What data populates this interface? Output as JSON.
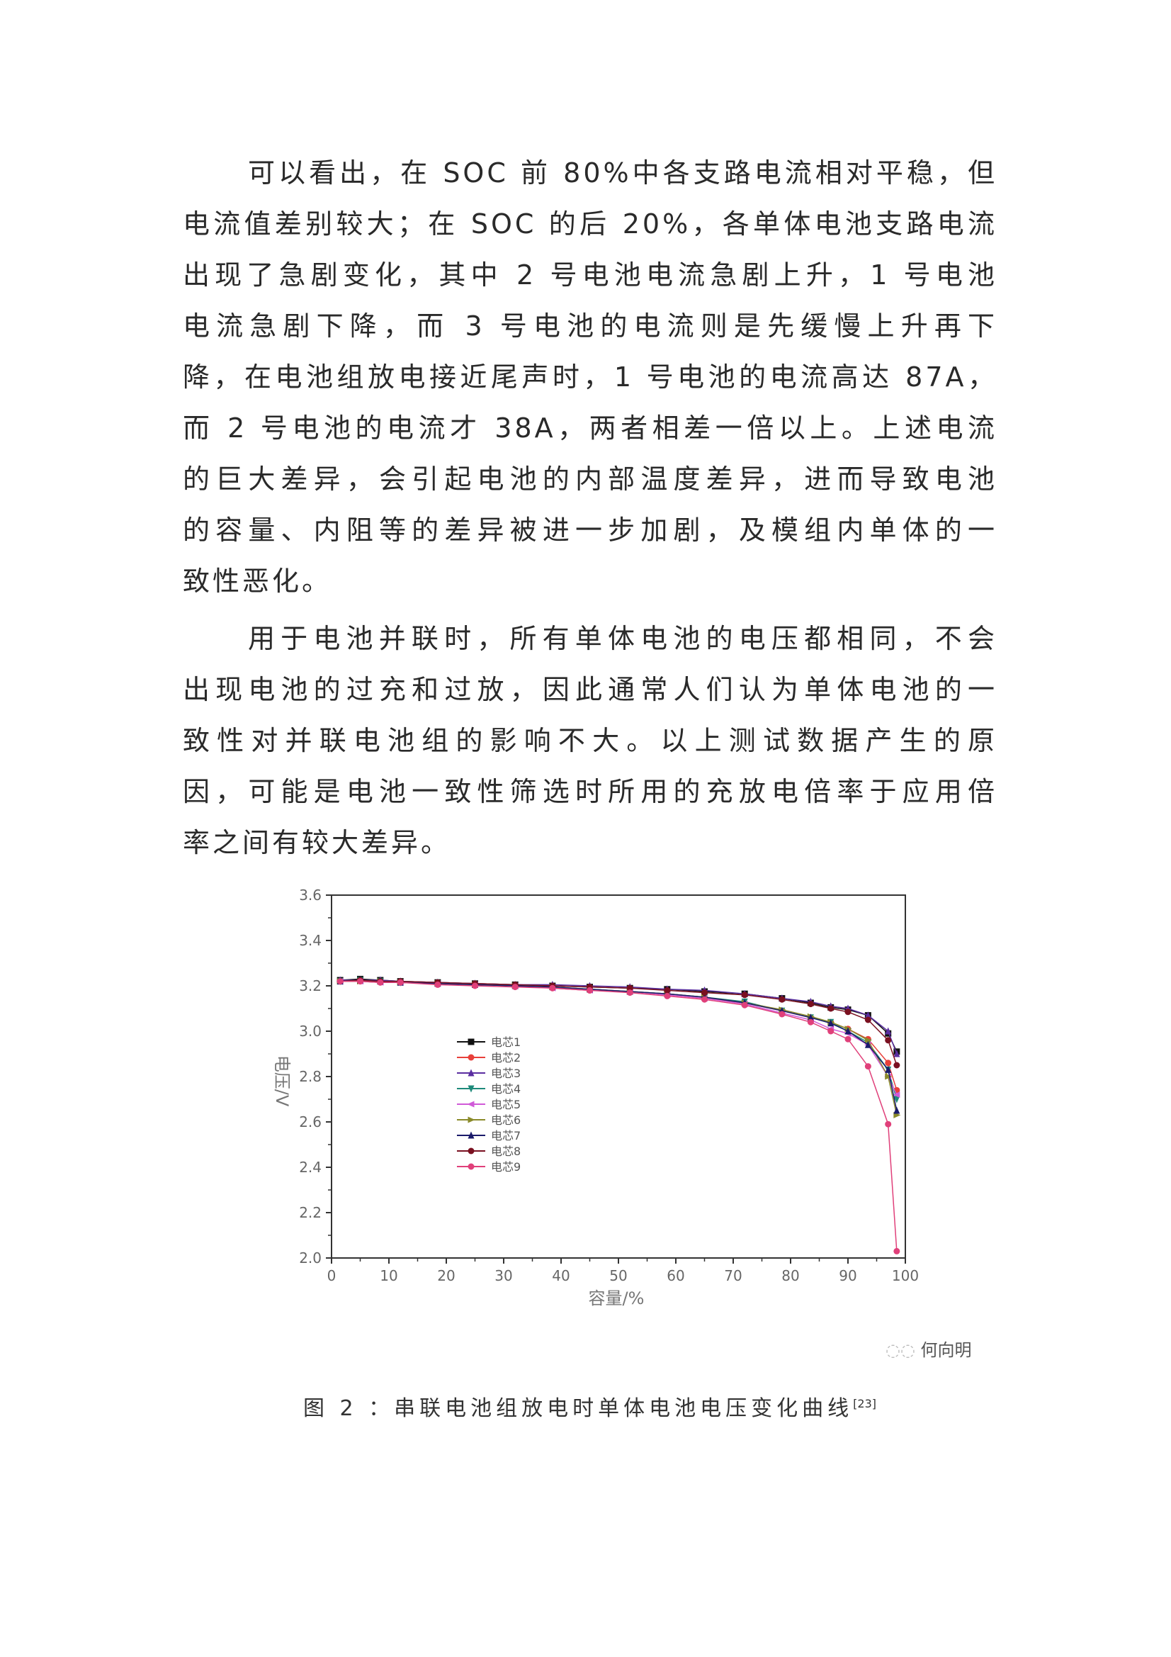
{
  "paragraphs": [
    {
      "lines": [
        "可以看出，在 SOC 前 80%中各支路电流相对平稳，但",
        "电流值差别较大；在 SOC 的后 20%，各单体电池支路电流",
        "出现了急剧变化，其中 2 号电池电流急剧上升，1 号电池",
        "电流急剧下降，而 3 号电池的电流则是先缓慢上升再下",
        "降，在电池组放电接近尾声时，1 号电池的电流高达 87A，",
        "而 2 号电池的电流才 38A，两者相差一倍以上。上述电流",
        "的巨大差异，会引起电池的内部温度差异，进而导致电池",
        "的容量、内阻等的差异被进一步加剧，及模组内单体的一",
        "致性恶化。"
      ]
    },
    {
      "lines": [
        "用于电池并联时，所有单体电池的电压都相同，不会",
        "出现电池的过充和过放，因此通常人们认为单体电池的一",
        "致性对并联电池组的影响不大。以上测试数据产生的原",
        "因，可能是电池一致性筛选时所用的充放电倍率于应用倍",
        "率之间有较大差异。"
      ]
    }
  ],
  "figure": {
    "caption": "图 2 ：串联电池组放电时单体电池电压变化曲线",
    "citation": "[23]",
    "watermark": "何向明"
  },
  "chart_data": {
    "type": "line",
    "xlabel": "容量/%",
    "ylabel": "电压/V",
    "xlim": [
      0,
      100
    ],
    "ylim": [
      2.0,
      3.6
    ],
    "xticks": [
      "0",
      "10",
      "20",
      "30",
      "40",
      "50",
      "60",
      "70",
      "80",
      "90",
      "100"
    ],
    "yticks": [
      "2.0",
      "2.2",
      "2.4",
      "2.6",
      "2.8",
      "3.0",
      "3.2",
      "3.4",
      "3.6"
    ],
    "grid": false,
    "legend_position": "center-left",
    "x": [
      1.5,
      5,
      8.5,
      12,
      18.5,
      25,
      32,
      38.5,
      45,
      52,
      58.5,
      65,
      72,
      78.5,
      83.5,
      87,
      90,
      93.5,
      97,
      98.5
    ],
    "series": [
      {
        "name": "电芯1",
        "color": "#111111",
        "marker": "square",
        "values": [
          3.225,
          3.23,
          3.225,
          3.22,
          3.215,
          3.21,
          3.205,
          3.2,
          3.195,
          3.19,
          3.185,
          3.175,
          3.165,
          3.145,
          3.125,
          3.105,
          3.095,
          3.07,
          2.99,
          2.91
        ]
      },
      {
        "name": "电芯2",
        "color": "#e8403a",
        "marker": "circle",
        "values": [
          3.22,
          3.22,
          3.215,
          3.215,
          3.21,
          3.205,
          3.2,
          3.19,
          3.18,
          3.175,
          3.16,
          3.145,
          3.125,
          3.09,
          3.06,
          3.04,
          3.01,
          2.965,
          2.86,
          2.74
        ]
      },
      {
        "name": "电芯3",
        "color": "#5a2ea0",
        "marker": "triangle",
        "values": [
          3.225,
          3.225,
          3.225,
          3.22,
          3.215,
          3.21,
          3.205,
          3.205,
          3.2,
          3.195,
          3.185,
          3.18,
          3.165,
          3.145,
          3.13,
          3.11,
          3.1,
          3.07,
          3.0,
          2.9
        ]
      },
      {
        "name": "电芯4",
        "color": "#1e8a7a",
        "marker": "triangle-down",
        "values": [
          3.22,
          3.225,
          3.22,
          3.215,
          3.21,
          3.205,
          3.2,
          3.195,
          3.185,
          3.175,
          3.165,
          3.15,
          3.13,
          3.09,
          3.06,
          3.04,
          3.0,
          2.95,
          2.83,
          2.7
        ]
      },
      {
        "name": "电芯5",
        "color": "#d05ad8",
        "marker": "triangle-left",
        "values": [
          3.22,
          3.22,
          3.215,
          3.215,
          3.21,
          3.205,
          3.2,
          3.19,
          3.18,
          3.175,
          3.16,
          3.145,
          3.12,
          3.08,
          3.05,
          3.01,
          2.99,
          2.94,
          2.8,
          2.72
        ]
      },
      {
        "name": "电芯6",
        "color": "#8a8a2a",
        "marker": "triangle-right",
        "values": [
          3.22,
          3.22,
          3.22,
          3.215,
          3.21,
          3.205,
          3.2,
          3.195,
          3.185,
          3.175,
          3.165,
          3.15,
          3.125,
          3.095,
          3.065,
          3.04,
          3.01,
          2.96,
          2.8,
          2.63
        ]
      },
      {
        "name": "电芯7",
        "color": "#1a1a6a",
        "marker": "triangle",
        "values": [
          3.22,
          3.225,
          3.22,
          3.215,
          3.21,
          3.205,
          3.2,
          3.195,
          3.185,
          3.175,
          3.165,
          3.15,
          3.125,
          3.09,
          3.06,
          3.035,
          3.0,
          2.94,
          2.83,
          2.65
        ]
      },
      {
        "name": "电芯8",
        "color": "#7a1020",
        "marker": "circle",
        "values": [
          3.22,
          3.225,
          3.22,
          3.22,
          3.215,
          3.21,
          3.205,
          3.2,
          3.195,
          3.19,
          3.18,
          3.17,
          3.16,
          3.14,
          3.12,
          3.1,
          3.085,
          3.05,
          2.96,
          2.85
        ]
      },
      {
        "name": "电芯9",
        "color": "#e0407a",
        "marker": "circle",
        "values": [
          3.22,
          3.22,
          3.215,
          3.215,
          3.205,
          3.2,
          3.195,
          3.19,
          3.18,
          3.17,
          3.155,
          3.14,
          3.115,
          3.075,
          3.04,
          3.0,
          2.965,
          2.845,
          2.59,
          2.03
        ]
      }
    ]
  }
}
